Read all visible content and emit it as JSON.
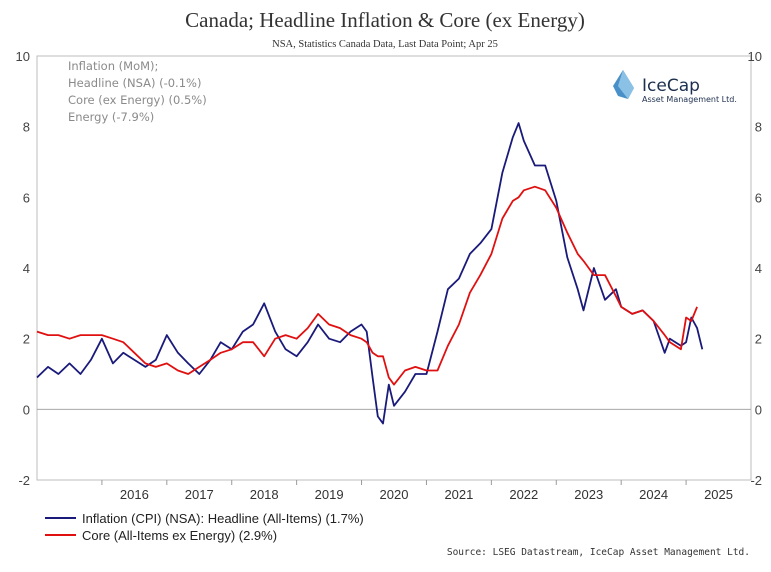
{
  "title": "Canada; Headline Inflation & Core (ex Energy)",
  "subtitle": "NSA, Statistics Canada Data, Last Data Point; Apr 25",
  "source": "Source:  LSEG Datastream, IceCap Asset Management Ltd.",
  "notes": [
    "Inflation (MoM);",
    "Headline (NSA) (-0.1%)",
    "Core (ex Energy) (0.5%)",
    "Energy (-7.9%)"
  ],
  "logo": {
    "name": "IceCap",
    "tagline": "Asset Management Ltd.",
    "color": "#1d2f4f",
    "accent": "#4a90c8"
  },
  "chart_data": {
    "type": "line",
    "title": "Canada; Headline Inflation & Core (ex Energy)",
    "ylim": [
      -2,
      10
    ],
    "yticks": [
      -2,
      0,
      2,
      4,
      6,
      8,
      10
    ],
    "ytick_labels": [
      "-2",
      "0",
      "2",
      "4",
      "6",
      "8",
      "10"
    ],
    "xlim": [
      2015.0,
      2026.0
    ],
    "xticks": [
      2016,
      2017,
      2018,
      2019,
      2020,
      2021,
      2022,
      2023,
      2024,
      2025
    ],
    "xtick_labels": [
      "2016",
      "2017",
      "2018",
      "2019",
      "2020",
      "2021",
      "2022",
      "2023",
      "2024",
      "2025"
    ],
    "grid": false,
    "legend_position": "bottom-left",
    "series": [
      {
        "name": "Inflation (CPI) (NSA): Headline (All-Items) (1.7%)",
        "color": "#1a1a7a",
        "points": [
          [
            2015.0,
            0.9
          ],
          [
            2015.17,
            1.2
          ],
          [
            2015.33,
            1.0
          ],
          [
            2015.5,
            1.3
          ],
          [
            2015.67,
            1.0
          ],
          [
            2015.83,
            1.4
          ],
          [
            2016.0,
            2.0
          ],
          [
            2016.17,
            1.3
          ],
          [
            2016.33,
            1.6
          ],
          [
            2016.5,
            1.4
          ],
          [
            2016.67,
            1.2
          ],
          [
            2016.83,
            1.4
          ],
          [
            2017.0,
            2.1
          ],
          [
            2017.17,
            1.6
          ],
          [
            2017.33,
            1.3
          ],
          [
            2017.5,
            1.0
          ],
          [
            2017.67,
            1.4
          ],
          [
            2017.83,
            1.9
          ],
          [
            2018.0,
            1.7
          ],
          [
            2018.17,
            2.2
          ],
          [
            2018.33,
            2.4
          ],
          [
            2018.5,
            3.0
          ],
          [
            2018.67,
            2.2
          ],
          [
            2018.83,
            1.7
          ],
          [
            2019.0,
            1.5
          ],
          [
            2019.17,
            1.9
          ],
          [
            2019.33,
            2.4
          ],
          [
            2019.5,
            2.0
          ],
          [
            2019.67,
            1.9
          ],
          [
            2019.83,
            2.2
          ],
          [
            2020.0,
            2.4
          ],
          [
            2020.08,
            2.2
          ],
          [
            2020.17,
            0.9
          ],
          [
            2020.25,
            -0.2
          ],
          [
            2020.33,
            -0.4
          ],
          [
            2020.42,
            0.7
          ],
          [
            2020.5,
            0.1
          ],
          [
            2020.67,
            0.5
          ],
          [
            2020.83,
            1.0
          ],
          [
            2021.0,
            1.0
          ],
          [
            2021.17,
            2.2
          ],
          [
            2021.33,
            3.4
          ],
          [
            2021.5,
            3.7
          ],
          [
            2021.67,
            4.4
          ],
          [
            2021.83,
            4.7
          ],
          [
            2022.0,
            5.1
          ],
          [
            2022.17,
            6.7
          ],
          [
            2022.33,
            7.7
          ],
          [
            2022.42,
            8.1
          ],
          [
            2022.5,
            7.6
          ],
          [
            2022.67,
            6.9
          ],
          [
            2022.83,
            6.9
          ],
          [
            2023.0,
            5.9
          ],
          [
            2023.17,
            4.3
          ],
          [
            2023.33,
            3.4
          ],
          [
            2023.42,
            2.8
          ],
          [
            2023.58,
            4.0
          ],
          [
            2023.75,
            3.1
          ],
          [
            2023.92,
            3.4
          ],
          [
            2024.0,
            2.9
          ],
          [
            2024.17,
            2.7
          ],
          [
            2024.33,
            2.8
          ],
          [
            2024.5,
            2.5
          ],
          [
            2024.67,
            1.6
          ],
          [
            2024.75,
            2.0
          ],
          [
            2024.92,
            1.8
          ],
          [
            2025.0,
            1.9
          ],
          [
            2025.08,
            2.6
          ],
          [
            2025.17,
            2.3
          ],
          [
            2025.25,
            1.7
          ]
        ]
      },
      {
        "name": "Core (All-Items ex Energy) (2.9%)",
        "color": "#e01010",
        "points": [
          [
            2015.0,
            2.2
          ],
          [
            2015.17,
            2.1
          ],
          [
            2015.33,
            2.1
          ],
          [
            2015.5,
            2.0
          ],
          [
            2015.67,
            2.1
          ],
          [
            2015.83,
            2.1
          ],
          [
            2016.0,
            2.1
          ],
          [
            2016.17,
            2.0
          ],
          [
            2016.33,
            1.9
          ],
          [
            2016.5,
            1.6
          ],
          [
            2016.67,
            1.3
          ],
          [
            2016.83,
            1.2
          ],
          [
            2017.0,
            1.3
          ],
          [
            2017.17,
            1.1
          ],
          [
            2017.33,
            1.0
          ],
          [
            2017.5,
            1.2
          ],
          [
            2017.67,
            1.4
          ],
          [
            2017.83,
            1.6
          ],
          [
            2018.0,
            1.7
          ],
          [
            2018.17,
            1.9
          ],
          [
            2018.33,
            1.9
          ],
          [
            2018.5,
            1.5
          ],
          [
            2018.67,
            2.0
          ],
          [
            2018.83,
            2.1
          ],
          [
            2019.0,
            2.0
          ],
          [
            2019.17,
            2.3
          ],
          [
            2019.33,
            2.7
          ],
          [
            2019.5,
            2.4
          ],
          [
            2019.67,
            2.3
          ],
          [
            2019.83,
            2.1
          ],
          [
            2020.0,
            2.0
          ],
          [
            2020.08,
            1.9
          ],
          [
            2020.17,
            1.6
          ],
          [
            2020.25,
            1.5
          ],
          [
            2020.33,
            1.5
          ],
          [
            2020.42,
            0.9
          ],
          [
            2020.5,
            0.7
          ],
          [
            2020.67,
            1.1
          ],
          [
            2020.83,
            1.2
          ],
          [
            2021.0,
            1.1
          ],
          [
            2021.17,
            1.1
          ],
          [
            2021.33,
            1.8
          ],
          [
            2021.5,
            2.4
          ],
          [
            2021.67,
            3.3
          ],
          [
            2021.83,
            3.8
          ],
          [
            2022.0,
            4.4
          ],
          [
            2022.17,
            5.4
          ],
          [
            2022.33,
            5.9
          ],
          [
            2022.42,
            6.0
          ],
          [
            2022.5,
            6.2
          ],
          [
            2022.67,
            6.3
          ],
          [
            2022.83,
            6.2
          ],
          [
            2023.0,
            5.7
          ],
          [
            2023.17,
            5.0
          ],
          [
            2023.33,
            4.4
          ],
          [
            2023.42,
            4.2
          ],
          [
            2023.58,
            3.8
          ],
          [
            2023.75,
            3.8
          ],
          [
            2023.92,
            3.2
          ],
          [
            2024.0,
            2.9
          ],
          [
            2024.17,
            2.7
          ],
          [
            2024.33,
            2.8
          ],
          [
            2024.5,
            2.5
          ],
          [
            2024.67,
            2.1
          ],
          [
            2024.75,
            1.9
          ],
          [
            2024.92,
            1.7
          ],
          [
            2025.0,
            2.6
          ],
          [
            2025.08,
            2.5
          ],
          [
            2025.17,
            2.9
          ]
        ]
      }
    ]
  }
}
